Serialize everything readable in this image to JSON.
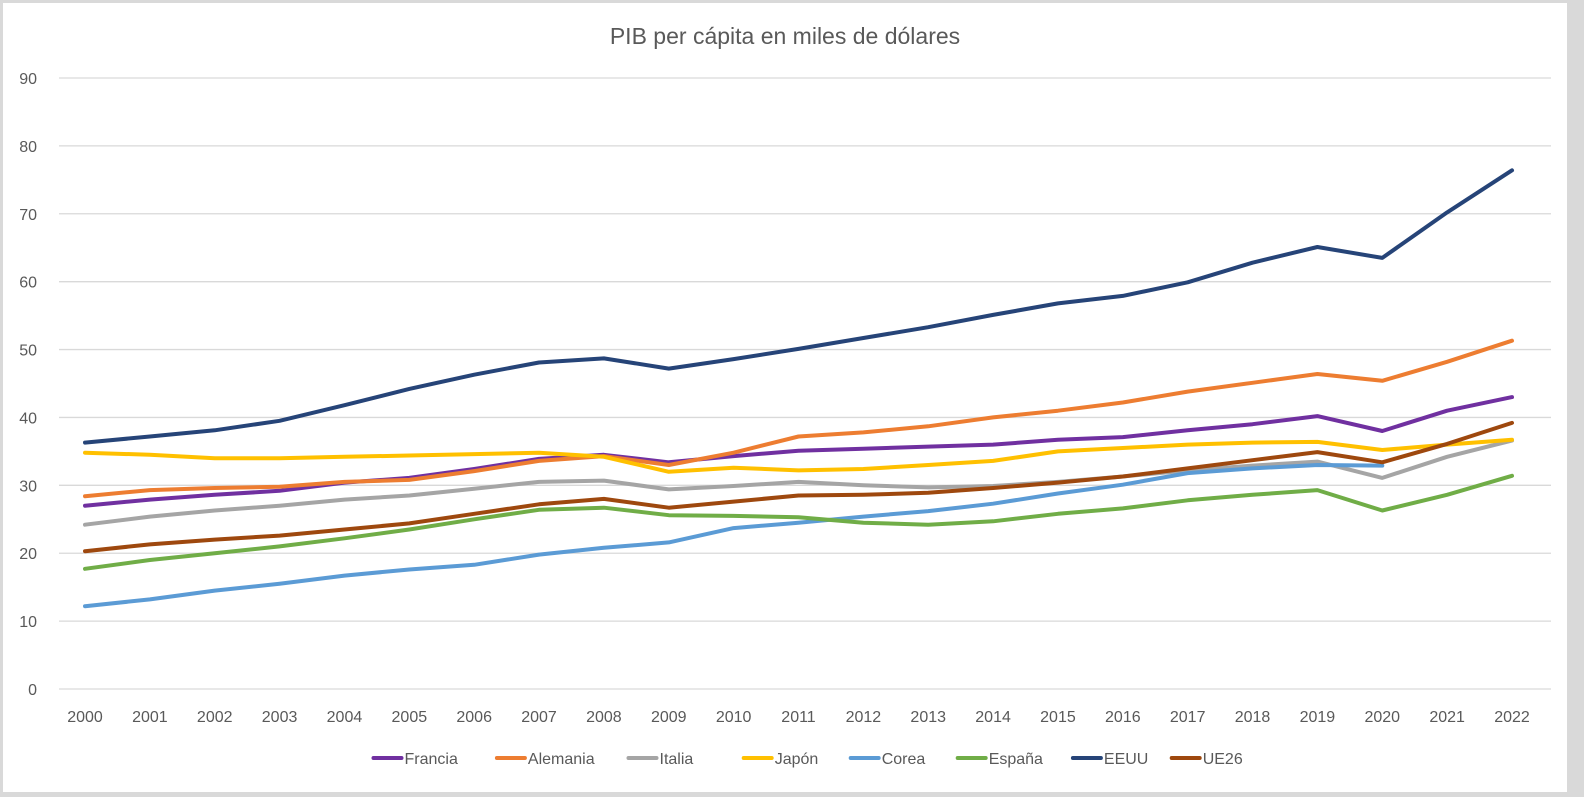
{
  "chart_data": {
    "type": "line",
    "title": "PIB per cápita en miles de dólares",
    "xlabel": "",
    "ylabel": "",
    "ylim": [
      0,
      90
    ],
    "yticks": [
      0,
      10,
      20,
      30,
      40,
      50,
      60,
      70,
      80,
      90
    ],
    "grid": true,
    "legend_position": "bottom",
    "x": [
      "2000",
      "2001",
      "2002",
      "2003",
      "2004",
      "2005",
      "2006",
      "2007",
      "2008",
      "2009",
      "2010",
      "2011",
      "2012",
      "2013",
      "2014",
      "2015",
      "2016",
      "2017",
      "2018",
      "2019",
      "2020",
      "2021",
      "2022"
    ],
    "series": [
      {
        "name": "Francia",
        "color": "#7030a0",
        "values": [
          27.0,
          27.9,
          28.6,
          29.2,
          30.4,
          31.1,
          32.4,
          33.9,
          34.5,
          33.4,
          34.3,
          35.1,
          35.4,
          35.7,
          36.0,
          36.7,
          37.1,
          38.1,
          39.0,
          40.2,
          38.0,
          41.0,
          43.0
        ]
      },
      {
        "name": "Alemania",
        "color": "#ed7d31",
        "values": [
          28.4,
          29.3,
          29.6,
          29.8,
          30.5,
          30.8,
          32.1,
          33.6,
          34.3,
          33.0,
          34.8,
          37.2,
          37.8,
          38.7,
          40.0,
          41.0,
          42.2,
          43.8,
          45.1,
          46.4,
          45.4,
          48.2,
          51.3
        ]
      },
      {
        "name": "Italia",
        "color": "#a5a5a5",
        "values": [
          24.2,
          25.4,
          26.3,
          27.0,
          27.9,
          28.5,
          29.5,
          30.5,
          30.7,
          29.4,
          29.9,
          30.5,
          30.0,
          29.7,
          29.9,
          30.5,
          31.3,
          32.2,
          32.9,
          33.5,
          31.1,
          34.2,
          36.6
        ]
      },
      {
        "name": "Japón",
        "color": "#ffc000",
        "values": [
          34.8,
          34.5,
          34.0,
          34.0,
          34.2,
          34.4,
          34.6,
          34.8,
          34.2,
          32.0,
          32.6,
          32.2,
          32.4,
          33.0,
          33.6,
          35.0,
          35.5,
          36.0,
          36.3,
          36.4,
          35.2,
          36.0,
          36.7
        ]
      },
      {
        "name": "Corea",
        "color": "#5b9bd5",
        "values": [
          12.2,
          13.2,
          14.5,
          15.5,
          16.7,
          17.6,
          18.3,
          19.8,
          20.8,
          21.6,
          23.7,
          24.5,
          25.4,
          26.2,
          27.3,
          28.8,
          30.1,
          31.8,
          32.5,
          33.0,
          32.9,
          null,
          null
        ]
      },
      {
        "name": "España",
        "color": "#70ad47",
        "values": [
          17.7,
          19.0,
          20.0,
          21.0,
          22.2,
          23.5,
          25.0,
          26.4,
          26.7,
          25.6,
          25.5,
          25.3,
          24.5,
          24.2,
          24.7,
          25.8,
          26.6,
          27.8,
          28.6,
          29.3,
          26.3,
          28.6,
          31.4
        ]
      },
      {
        "name": "EEUU",
        "color": "#264478",
        "values": [
          36.3,
          37.2,
          38.1,
          39.5,
          41.8,
          44.2,
          46.3,
          48.1,
          48.7,
          47.2,
          48.6,
          50.1,
          51.7,
          53.3,
          55.1,
          56.8,
          57.9,
          59.9,
          62.8,
          65.1,
          63.5,
          70.2,
          76.4
        ]
      },
      {
        "name": "UE26",
        "color": "#9e480e",
        "values": [
          20.3,
          21.3,
          22.0,
          22.6,
          23.5,
          24.4,
          25.8,
          27.2,
          28.0,
          26.7,
          27.6,
          28.5,
          28.6,
          28.9,
          29.6,
          30.4,
          31.3,
          32.5,
          33.7,
          34.9,
          33.4,
          36.1,
          39.2
        ]
      }
    ]
  }
}
